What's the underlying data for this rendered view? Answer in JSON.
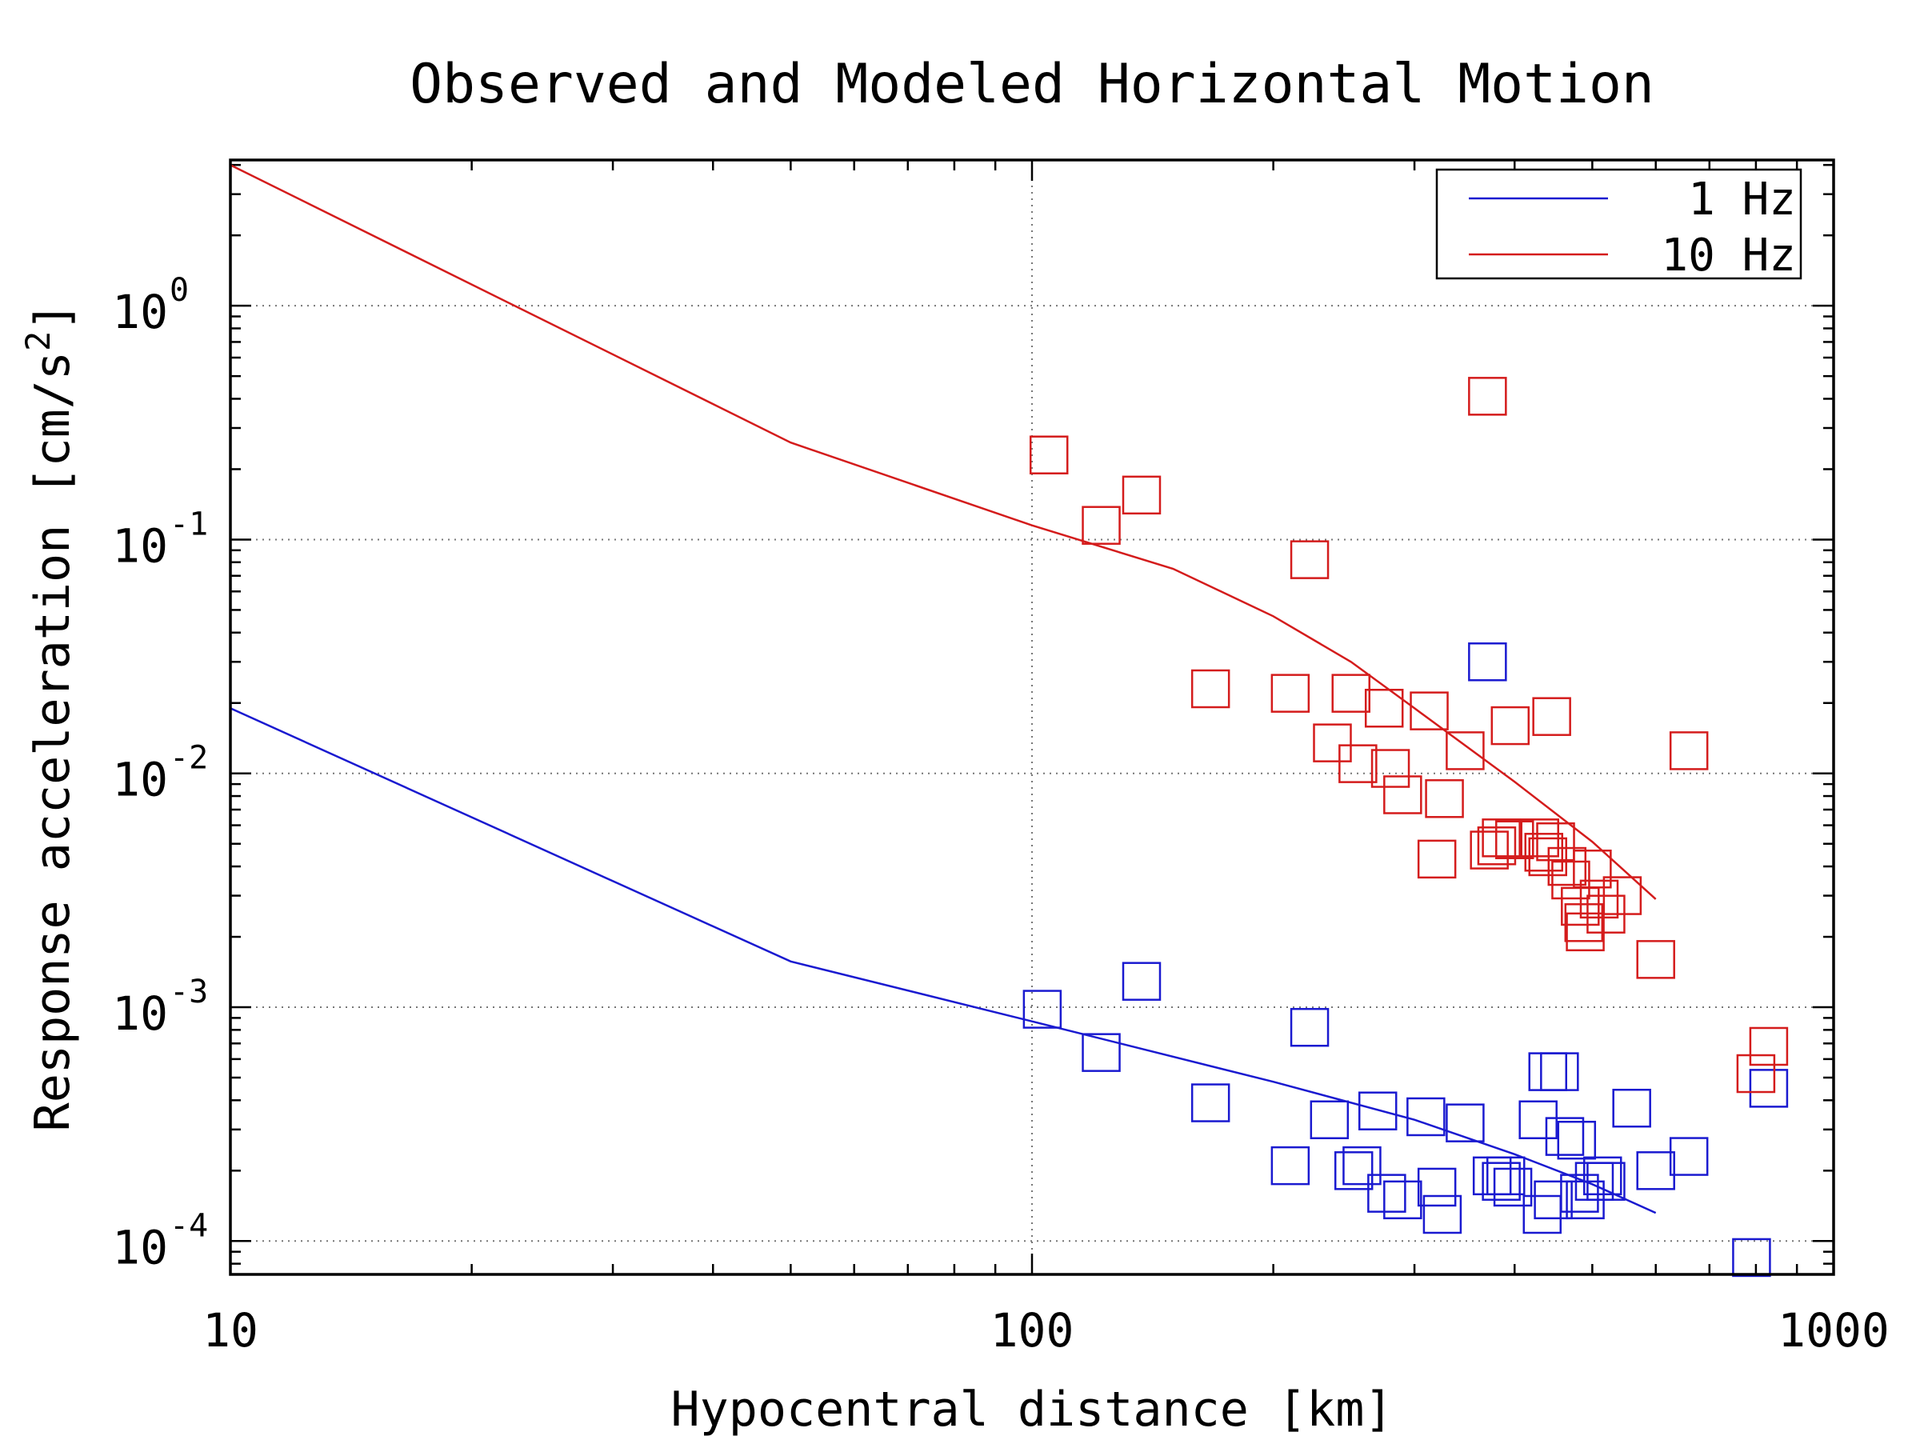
{
  "chart_data": {
    "type": "scatter",
    "title": "Observed and Modeled Horizontal Motion",
    "xlabel": "Hypocentral distance [km]",
    "ylabel": "Response acceleration [cm/s",
    "ylabel_sup": "2",
    "ylabel_end": "]",
    "xscale": "log",
    "yscale": "log",
    "xlim": [
      10,
      1000
    ],
    "ylim": [
      7.2e-05,
      4.2
    ],
    "grid": true,
    "legend_position": "top-right",
    "x_ticks": [
      {
        "value": 10,
        "label": "10"
      },
      {
        "value": 100,
        "label": "100"
      },
      {
        "value": 1000,
        "label": "1000"
      }
    ],
    "y_ticks": [
      {
        "value": 1,
        "base": "10",
        "exp": "0"
      },
      {
        "value": 0.1,
        "base": "10",
        "exp": "-1"
      },
      {
        "value": 0.01,
        "base": "10",
        "exp": "-2"
      },
      {
        "value": 0.001,
        "base": "10",
        "exp": "-3"
      },
      {
        "value": 0.0001,
        "base": "10",
        "exp": "-4"
      }
    ],
    "series": [
      {
        "name": "1 Hz",
        "color": "#1a1ad0",
        "model_line": {
          "x": [
            10,
            50,
            100,
            200,
            300,
            400,
            500,
            600
          ],
          "y": [
            0.019,
            0.00157,
            0.00087,
            0.00048,
            0.00033,
            0.000235,
            0.000175,
            0.000132
          ]
        },
        "observed": [
          {
            "x": 103,
            "y": 0.00098
          },
          {
            "x": 122,
            "y": 0.00064
          },
          {
            "x": 137,
            "y": 0.00129
          },
          {
            "x": 167,
            "y": 0.00039
          },
          {
            "x": 210,
            "y": 0.00021
          },
          {
            "x": 222,
            "y": 0.00082
          },
          {
            "x": 235,
            "y": 0.00033
          },
          {
            "x": 252,
            "y": 0.0002
          },
          {
            "x": 258,
            "y": 0.00021
          },
          {
            "x": 270,
            "y": 0.00036
          },
          {
            "x": 277,
            "y": 0.00016
          },
          {
            "x": 290,
            "y": 0.00015
          },
          {
            "x": 310,
            "y": 0.00034
          },
          {
            "x": 320,
            "y": 0.00017
          },
          {
            "x": 325,
            "y": 0.00013
          },
          {
            "x": 347,
            "y": 0.00032
          },
          {
            "x": 370,
            "y": 0.03
          },
          {
            "x": 375,
            "y": 0.00019
          },
          {
            "x": 385,
            "y": 0.00018
          },
          {
            "x": 390,
            "y": 0.00019
          },
          {
            "x": 398,
            "y": 0.00017
          },
          {
            "x": 428,
            "y": 0.00033
          },
          {
            "x": 433,
            "y": 0.00013
          },
          {
            "x": 440,
            "y": 0.00053
          },
          {
            "x": 447,
            "y": 0.00015
          },
          {
            "x": 455,
            "y": 0.00053
          },
          {
            "x": 462,
            "y": 0.00028
          },
          {
            "x": 478,
            "y": 0.00027
          },
          {
            "x": 482,
            "y": 0.00016
          },
          {
            "x": 490,
            "y": 0.00015
          },
          {
            "x": 503,
            "y": 0.00018
          },
          {
            "x": 515,
            "y": 0.00019
          },
          {
            "x": 520,
            "y": 0.00018
          },
          {
            "x": 560,
            "y": 0.00037
          },
          {
            "x": 600,
            "y": 0.0002
          },
          {
            "x": 660,
            "y": 0.00023
          },
          {
            "x": 790,
            "y": 8.5e-05
          },
          {
            "x": 830,
            "y": 0.00045
          }
        ]
      },
      {
        "name": "10 Hz",
        "color": "#d41c1c",
        "model_line": {
          "x": [
            10,
            50,
            100,
            150,
            200,
            250,
            300,
            400,
            500,
            600
          ],
          "y": [
            4.0,
            0.26,
            0.115,
            0.075,
            0.047,
            0.03,
            0.019,
            0.0092,
            0.0051,
            0.0029
          ]
        },
        "observed": [
          {
            "x": 105,
            "y": 0.23
          },
          {
            "x": 122,
            "y": 0.115
          },
          {
            "x": 137,
            "y": 0.155
          },
          {
            "x": 167,
            "y": 0.023
          },
          {
            "x": 210,
            "y": 0.022
          },
          {
            "x": 222,
            "y": 0.082
          },
          {
            "x": 237,
            "y": 0.0135
          },
          {
            "x": 250,
            "y": 0.022
          },
          {
            "x": 255,
            "y": 0.011
          },
          {
            "x": 275,
            "y": 0.019
          },
          {
            "x": 280,
            "y": 0.0105
          },
          {
            "x": 290,
            "y": 0.0081
          },
          {
            "x": 313,
            "y": 0.0185
          },
          {
            "x": 320,
            "y": 0.0043
          },
          {
            "x": 327,
            "y": 0.0078
          },
          {
            "x": 347,
            "y": 0.0125
          },
          {
            "x": 370,
            "y": 0.41
          },
          {
            "x": 372,
            "y": 0.0047
          },
          {
            "x": 380,
            "y": 0.0049
          },
          {
            "x": 385,
            "y": 0.0053
          },
          {
            "x": 395,
            "y": 0.016
          },
          {
            "x": 400,
            "y": 0.0052
          },
          {
            "x": 430,
            "y": 0.0053
          },
          {
            "x": 435,
            "y": 0.0046
          },
          {
            "x": 440,
            "y": 0.0044
          },
          {
            "x": 445,
            "y": 0.0175
          },
          {
            "x": 450,
            "y": 0.0051
          },
          {
            "x": 465,
            "y": 0.004
          },
          {
            "x": 470,
            "y": 0.0035
          },
          {
            "x": 483,
            "y": 0.0027
          },
          {
            "x": 488,
            "y": 0.0023
          },
          {
            "x": 490,
            "y": 0.0021
          },
          {
            "x": 500,
            "y": 0.0039
          },
          {
            "x": 510,
            "y": 0.0029
          },
          {
            "x": 520,
            "y": 0.0025
          },
          {
            "x": 545,
            "y": 0.003
          },
          {
            "x": 600,
            "y": 0.0016
          },
          {
            "x": 660,
            "y": 0.0125
          },
          {
            "x": 800,
            "y": 0.00052
          },
          {
            "x": 830,
            "y": 0.00068
          }
        ]
      }
    ]
  }
}
